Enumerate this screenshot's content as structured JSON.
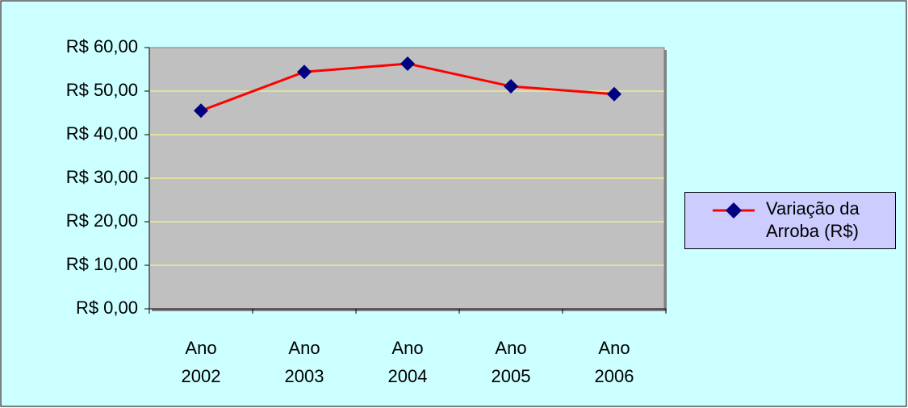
{
  "chart_data": {
    "type": "line",
    "categories": [
      "Ano 2002",
      "Ano 2003",
      "Ano 2004",
      "Ano 2005",
      "Ano 2006"
    ],
    "series": [
      {
        "name": "Variação da Arroba (R$)",
        "color": "#ff0000",
        "marker_color": "#000080",
        "values": [
          45.5,
          54.4,
          56.3,
          51.1,
          49.3
        ]
      }
    ],
    "ylim": [
      0,
      60
    ],
    "yticks": [
      {
        "value": 0,
        "label": "R$ 0,00"
      },
      {
        "value": 10,
        "label": "R$ 10,00"
      },
      {
        "value": 20,
        "label": "R$ 20,00"
      },
      {
        "value": 30,
        "label": "R$ 30,00"
      },
      {
        "value": 40,
        "label": "R$ 40,00"
      },
      {
        "value": 50,
        "label": "R$ 50,00"
      },
      {
        "value": 60,
        "label": "R$ 60,00"
      }
    ],
    "grid": true,
    "legend": "right"
  }
}
